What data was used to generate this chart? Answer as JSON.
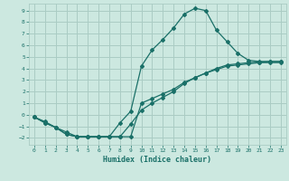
{
  "xlabel": "Humidex (Indice chaleur)",
  "bg_color": "#cce8e0",
  "grid_color": "#aaccc4",
  "line_color": "#1a7068",
  "xlim": [
    -0.5,
    23.5
  ],
  "ylim": [
    -2.6,
    9.6
  ],
  "xticks": [
    0,
    1,
    2,
    3,
    4,
    5,
    6,
    7,
    8,
    9,
    10,
    11,
    12,
    13,
    14,
    15,
    16,
    17,
    18,
    19,
    20,
    21,
    22,
    23
  ],
  "yticks": [
    -2,
    -1,
    0,
    1,
    2,
    3,
    4,
    5,
    6,
    7,
    8,
    9
  ],
  "curve1_x": [
    0,
    1,
    2,
    3,
    4,
    5,
    6,
    7,
    8,
    9,
    10,
    11,
    12,
    13,
    14,
    15,
    16,
    17,
    18,
    19,
    20,
    21,
    22,
    23
  ],
  "curve1_y": [
    -0.2,
    -0.7,
    -1.1,
    -1.7,
    -1.9,
    -1.9,
    -1.9,
    -1.9,
    -1.9,
    -1.9,
    1.0,
    1.4,
    1.8,
    2.2,
    2.8,
    3.2,
    3.6,
    3.9,
    4.2,
    4.3,
    4.4,
    4.5,
    4.5,
    4.5
  ],
  "curve2_x": [
    0,
    1,
    2,
    3,
    4,
    5,
    6,
    7,
    8,
    9,
    10,
    11,
    12,
    13,
    14,
    15,
    16,
    17,
    18,
    19,
    20,
    21,
    22,
    23
  ],
  "curve2_y": [
    -0.2,
    -0.7,
    -1.1,
    -1.7,
    -1.9,
    -1.9,
    -1.9,
    -1.9,
    -1.9,
    -0.8,
    0.4,
    1.0,
    1.5,
    2.0,
    2.7,
    3.2,
    3.6,
    4.0,
    4.3,
    4.4,
    4.5,
    4.55,
    4.6,
    4.6
  ],
  "curve3_x": [
    0,
    1,
    2,
    3,
    4,
    5,
    6,
    7,
    8,
    9,
    10,
    11,
    12,
    13,
    14,
    15,
    16,
    17,
    18,
    19,
    20,
    21,
    22,
    23
  ],
  "curve3_y": [
    -0.2,
    -0.6,
    -1.1,
    -1.5,
    -1.9,
    -1.9,
    -1.9,
    -1.9,
    -0.7,
    0.3,
    4.2,
    5.6,
    6.5,
    7.5,
    8.7,
    9.2,
    9.0,
    7.3,
    6.3,
    5.3,
    4.7,
    4.6,
    4.6,
    4.6
  ]
}
